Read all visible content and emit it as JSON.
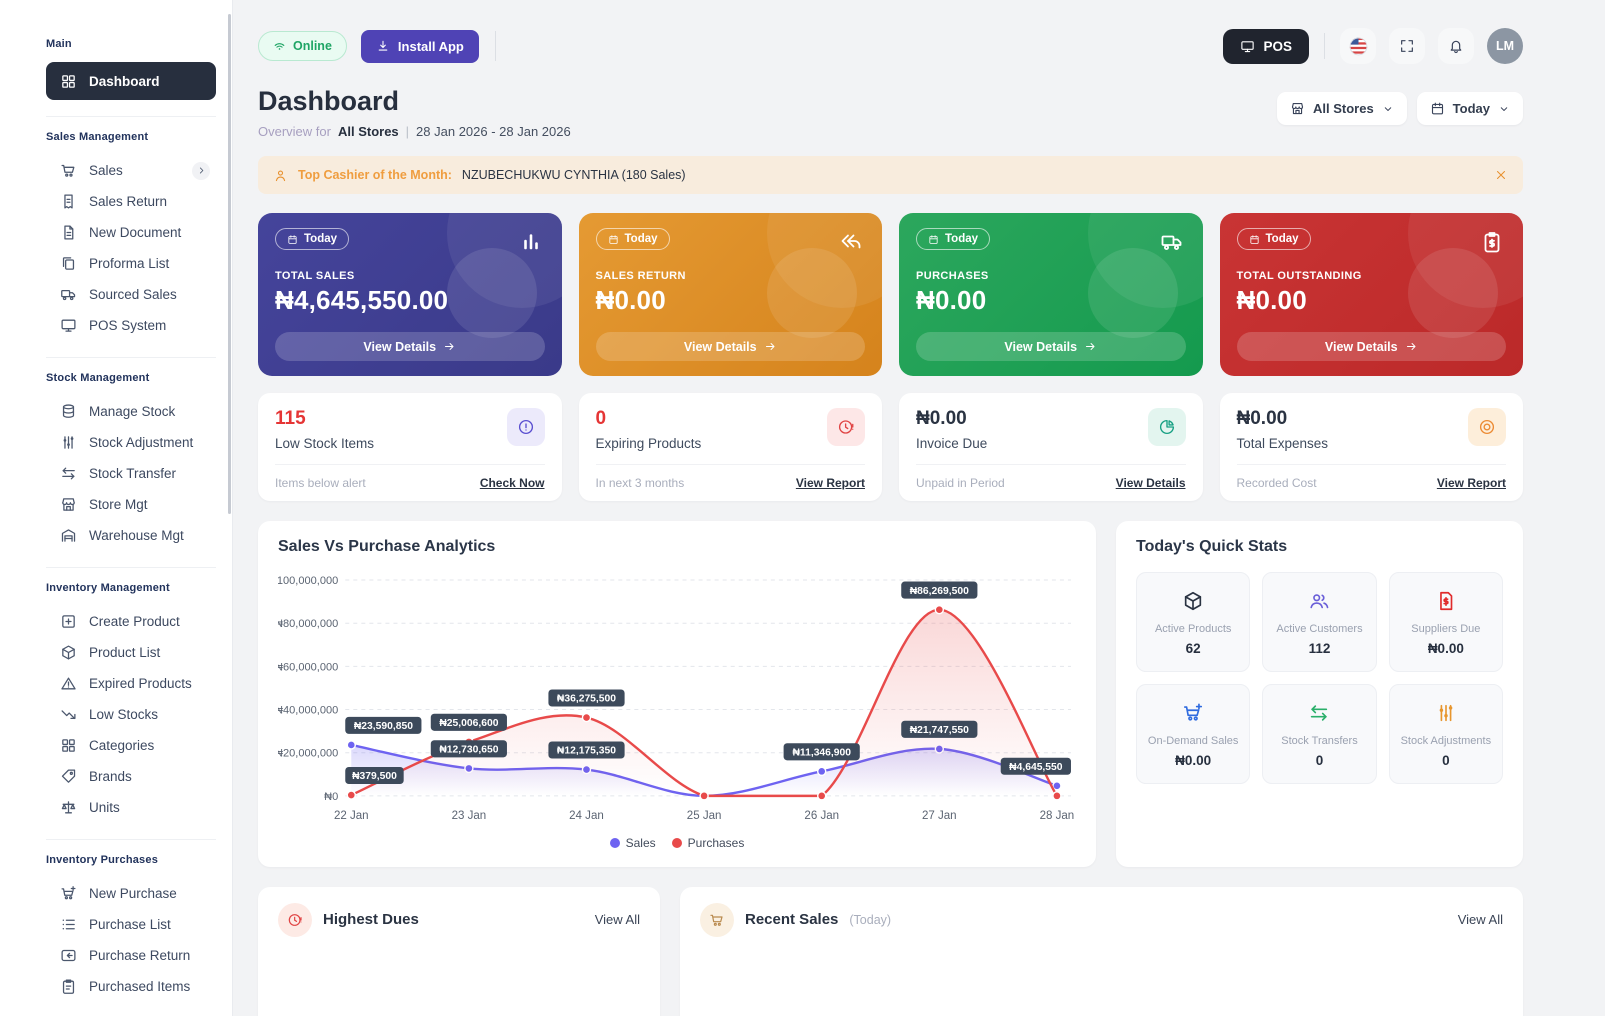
{
  "topbar": {
    "online_label": "Online",
    "install_label": "Install App",
    "pos_label": "POS",
    "avatar_initials": "LM"
  },
  "sidebar": {
    "sections": [
      {
        "label": "Main",
        "items": [
          {
            "label": "Dashboard",
            "icon": "grid",
            "active": true
          }
        ]
      },
      {
        "label": "Sales Management",
        "items": [
          {
            "label": "Sales",
            "icon": "cart",
            "chevron": true
          },
          {
            "label": "Sales Return",
            "icon": "receipt-return"
          },
          {
            "label": "New Document",
            "icon": "document"
          },
          {
            "label": "Proforma List",
            "icon": "copy"
          },
          {
            "label": "Sourced Sales",
            "icon": "truck"
          },
          {
            "label": "POS System",
            "icon": "monitor"
          }
        ]
      },
      {
        "label": "Stock Management",
        "items": [
          {
            "label": "Manage Stock",
            "icon": "database"
          },
          {
            "label": "Stock Adjustment",
            "icon": "sliders"
          },
          {
            "label": "Stock Transfer",
            "icon": "transfer"
          },
          {
            "label": "Store Mgt",
            "icon": "store"
          },
          {
            "label": "Warehouse Mgt",
            "icon": "warehouse"
          }
        ]
      },
      {
        "label": "Inventory Management",
        "items": [
          {
            "label": "Create Product",
            "icon": "plus-square"
          },
          {
            "label": "Product List",
            "icon": "cube"
          },
          {
            "label": "Expired Products",
            "icon": "warning"
          },
          {
            "label": "Low Stocks",
            "icon": "trend-down"
          },
          {
            "label": "Categories",
            "icon": "grid"
          },
          {
            "label": "Brands",
            "icon": "tag"
          },
          {
            "label": "Units",
            "icon": "scale"
          }
        ]
      },
      {
        "label": "Inventory Purchases",
        "items": [
          {
            "label": "New Purchase",
            "icon": "cart-plus"
          },
          {
            "label": "Purchase List",
            "icon": "list"
          },
          {
            "label": "Purchase Return",
            "icon": "return"
          },
          {
            "label": "Purchased Items",
            "icon": "clipboard"
          }
        ]
      }
    ]
  },
  "header": {
    "title": "Dashboard",
    "overview_prefix": "Overview for",
    "store_scope": "All Stores",
    "separator": "|",
    "date_range": "28 Jan 2026 - 28 Jan 2026",
    "store_filter": "All Stores",
    "period_filter": "Today"
  },
  "banner": {
    "prefix": "Top Cashier of the Month:",
    "text": "NZUBECHUKWU CYNTHIA (180 Sales)"
  },
  "stat_cards": [
    {
      "badge": "Today",
      "label": "TOTAL SALES",
      "value": "₦4,645,550.00",
      "button": "View Details",
      "icon": "bar-chart",
      "from": "#45449b",
      "to": "#3a3a89"
    },
    {
      "badge": "Today",
      "label": "SALES RETURN",
      "value": "₦0.00",
      "button": "View Details",
      "icon": "undo",
      "from": "#e59a33",
      "to": "#d5831c"
    },
    {
      "badge": "Today",
      "label": "PURCHASES",
      "value": "₦0.00",
      "button": "View Details",
      "icon": "truck",
      "from": "#2ca75d",
      "to": "#149a4e"
    },
    {
      "badge": "Today",
      "label": "TOTAL OUTSTANDING",
      "value": "₦0.00",
      "button": "View Details",
      "icon": "clipboard-dollar",
      "from": "#c93434",
      "to": "#bb2929"
    }
  ],
  "mini_cards": [
    {
      "value": "115",
      "value_color": "#e53535",
      "label": "Low Stock Items",
      "icon": "alert-circle",
      "icon_color": "#5a4fd0",
      "icon_bg": "#eceafb",
      "footer": "Items below alert",
      "link": "Check Now"
    },
    {
      "value": "0",
      "value_color": "#e53535",
      "label": "Expiring Products",
      "icon": "clock-alert",
      "icon_color": "#e04343",
      "icon_bg": "#fde7e7",
      "footer": "In next 3 months",
      "link": "View Report"
    },
    {
      "value": "₦0.00",
      "value_color": "#2a3342",
      "label": "Invoice Due",
      "icon": "pie",
      "icon_color": "#17a083",
      "icon_bg": "#e3f5ef",
      "footer": "Unpaid in Period",
      "link": "View Details"
    },
    {
      "value": "₦0.00",
      "value_color": "#2a3342",
      "label": "Total Expenses",
      "icon": "coins",
      "icon_color": "#ec8b34",
      "icon_bg": "#fdeeda",
      "footer": "Recorded Cost",
      "link": "View Report"
    }
  ],
  "chart_card": {
    "title": "Sales Vs Purchase Analytics",
    "chart_data": {
      "type": "line",
      "title": "Sales Vs Purchase Analytics",
      "x": [
        "22 Jan",
        "23 Jan",
        "24 Jan",
        "25 Jan",
        "26 Jan",
        "27 Jan",
        "28 Jan"
      ],
      "series": [
        {
          "name": "Sales",
          "color": "#6e63f1",
          "values": [
            23590850,
            12730650,
            12175350,
            0,
            11346900,
            21747550,
            4645550
          ]
        },
        {
          "name": "Purchases",
          "color": "#e84a4a",
          "values": [
            379500,
            25006600,
            36275500,
            0,
            0,
            86269500,
            0
          ]
        }
      ],
      "currency": "₦",
      "ylim": [
        0,
        100000000
      ],
      "y_ticks": [
        0,
        20000000,
        40000000,
        60000000,
        80000000,
        100000000
      ],
      "grid": "dashed-horizontal",
      "legend_position": "bottom",
      "point_labels": "nonzero points labeled with dark pills"
    }
  },
  "quick_stats": {
    "title": "Today's Quick Stats",
    "tiles": [
      {
        "label": "Active Products",
        "value": "62",
        "icon": "cube",
        "color": "#2a3342"
      },
      {
        "label": "Active Customers",
        "value": "112",
        "icon": "people",
        "color": "#6a5fd8"
      },
      {
        "label": "Suppliers Due",
        "value": "₦0.00",
        "icon": "file-dollar",
        "color": "#e02b2b"
      },
      {
        "label": "On-Demand Sales",
        "value": "₦0.00",
        "icon": "cart-plus",
        "color": "#2f6bdf"
      },
      {
        "label": "Stock Transfers",
        "value": "0",
        "icon": "transfer",
        "color": "#2aaf6a"
      },
      {
        "label": "Stock Adjustments",
        "value": "0",
        "icon": "sliders",
        "color": "#e7962e"
      }
    ]
  },
  "bottom_cards": [
    {
      "title": "Highest Dues",
      "suffix": "",
      "icon": "clock-alert",
      "icon_color": "#e04343",
      "icon_bg": "#fdeae5",
      "link": "View All"
    },
    {
      "title": "Recent Sales",
      "suffix": "(Today)",
      "icon": "cart",
      "icon_color": "#b98a4e",
      "icon_bg": "#faf0e2",
      "link": "View All"
    }
  ]
}
